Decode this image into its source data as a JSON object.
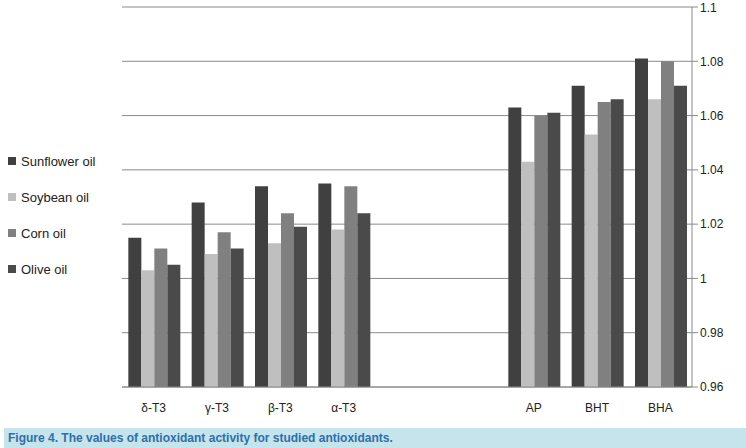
{
  "chart_data": {
    "type": "bar",
    "title": "Figure 4. The values of antioxidant activity for studied antioxidants.",
    "categories": [
      "δ-T3",
      "γ-T3",
      "β-T3",
      "α-T3",
      null,
      null,
      "AP",
      "BHT",
      "BHA"
    ],
    "series": [
      {
        "name": "Sunflower oil",
        "color": "#404040",
        "values": [
          1.015,
          1.028,
          1.034,
          1.035,
          null,
          null,
          1.063,
          1.071,
          1.081
        ]
      },
      {
        "name": "Soybean oil",
        "color": "#bfbfbf",
        "values": [
          1.003,
          1.009,
          1.013,
          1.018,
          null,
          null,
          1.043,
          1.053,
          1.066
        ]
      },
      {
        "name": "Corn oil",
        "color": "#808080",
        "values": [
          1.011,
          1.017,
          1.024,
          1.034,
          null,
          null,
          1.06,
          1.065,
          1.08
        ]
      },
      {
        "name": "Olive oil",
        "color": "#4a4a4a",
        "values": [
          1.005,
          1.011,
          1.019,
          1.024,
          null,
          null,
          1.061,
          1.066,
          1.071
        ]
      }
    ],
    "ylim": [
      0.96,
      1.1
    ],
    "yticks": [
      0.96,
      0.98,
      1,
      1.02,
      1.04,
      1.06,
      1.08,
      1.1
    ],
    "grid": true,
    "legend": "left"
  }
}
